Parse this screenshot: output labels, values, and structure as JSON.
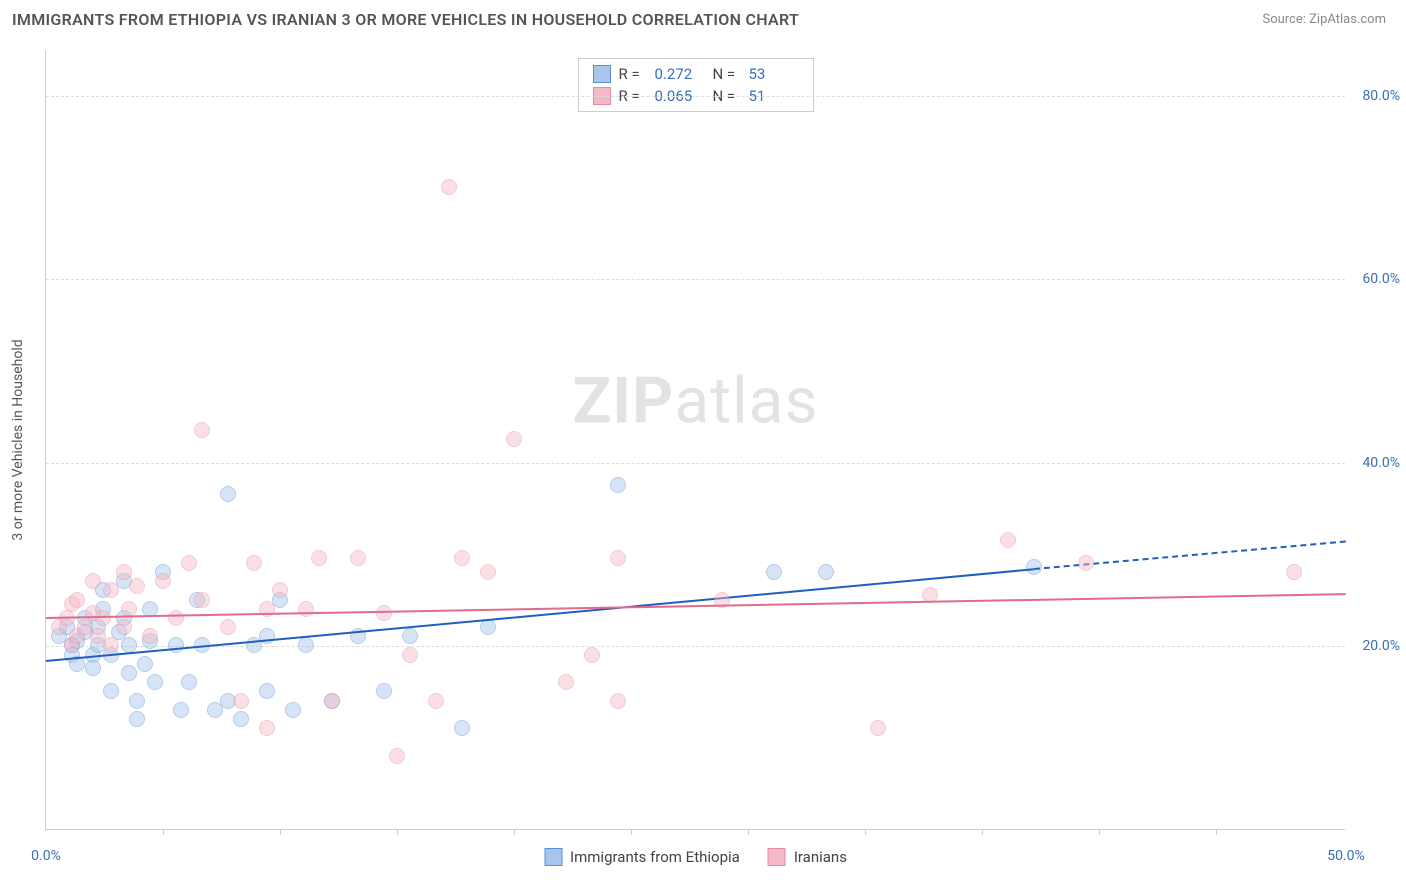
{
  "title": "IMMIGRANTS FROM ETHIOPIA VS IRANIAN 3 OR MORE VEHICLES IN HOUSEHOLD CORRELATION CHART",
  "source": "Source: ZipAtlas.com",
  "watermark_bold": "ZIP",
  "watermark_light": "atlas",
  "chart": {
    "type": "scatter",
    "xlim": [
      0,
      50
    ],
    "ylim": [
      0,
      85
    ],
    "x_ticks": [
      0,
      50
    ],
    "x_tick_labels": [
      "0.0%",
      "50.0%"
    ],
    "x_minor_ticks": [
      4.5,
      9,
      13.5,
      18,
      22.5,
      27,
      31.5,
      36,
      40.5,
      45
    ],
    "y_gridlines": [
      20,
      40,
      60,
      80
    ],
    "y_tick_labels": [
      "20.0%",
      "40.0%",
      "60.0%",
      "80.0%"
    ],
    "y_axis_title": "3 or more Vehicles in Household",
    "marker_radius": 8,
    "marker_opacity": 0.45,
    "background_color": "#ffffff",
    "grid_color": "#dddddd",
    "axis_color": "#cccccc",
    "tick_label_color": "#3b6fb6",
    "series": [
      {
        "name": "Immigrants from Ethiopia",
        "color_fill": "#a6c6ec",
        "color_stroke": "#5a8fd6",
        "r_value": "0.272",
        "n_value": "53",
        "trend": {
          "x1": 0,
          "y1": 18.5,
          "x2": 38,
          "y2": 28.5,
          "extend_x2": 50,
          "extend_y2": 31.5,
          "line_color": "#1f5fbf"
        },
        "points": [
          [
            0.5,
            21
          ],
          [
            0.8,
            22
          ],
          [
            1,
            20
          ],
          [
            1,
            19
          ],
          [
            1.2,
            18
          ],
          [
            1.2,
            20.5
          ],
          [
            1.5,
            21.5
          ],
          [
            1.5,
            23
          ],
          [
            1.8,
            19
          ],
          [
            1.8,
            17.5
          ],
          [
            2,
            20
          ],
          [
            2,
            22
          ],
          [
            2.2,
            24
          ],
          [
            2.2,
            26
          ],
          [
            2.5,
            19
          ],
          [
            2.5,
            15
          ],
          [
            2.8,
            21.5
          ],
          [
            3,
            23
          ],
          [
            3,
            27
          ],
          [
            3.2,
            17
          ],
          [
            3.2,
            20
          ],
          [
            3.5,
            12
          ],
          [
            3.5,
            14
          ],
          [
            3.8,
            18
          ],
          [
            4,
            24
          ],
          [
            4,
            20.5
          ],
          [
            4.2,
            16
          ],
          [
            4.5,
            28
          ],
          [
            5,
            20
          ],
          [
            5.2,
            13
          ],
          [
            5.5,
            16
          ],
          [
            5.8,
            25
          ],
          [
            6,
            20
          ],
          [
            6.5,
            13
          ],
          [
            7,
            36.5
          ],
          [
            7,
            14
          ],
          [
            7.5,
            12
          ],
          [
            8,
            20
          ],
          [
            8.5,
            15
          ],
          [
            8.5,
            21
          ],
          [
            9,
            25
          ],
          [
            9.5,
            13
          ],
          [
            10,
            20
          ],
          [
            11,
            14
          ],
          [
            12,
            21
          ],
          [
            13,
            15
          ],
          [
            14,
            21
          ],
          [
            16,
            11
          ],
          [
            17,
            22
          ],
          [
            22,
            37.5
          ],
          [
            28,
            28
          ],
          [
            30,
            28
          ],
          [
            38,
            28.5
          ]
        ]
      },
      {
        "name": "Iranians",
        "color_fill": "#f4b9c6",
        "color_stroke": "#e98ba0",
        "r_value": "0.065",
        "n_value": "51",
        "trend": {
          "x1": 0,
          "y1": 23.2,
          "x2": 50,
          "y2": 25.8,
          "line_color": "#e06b8b"
        },
        "points": [
          [
            0.5,
            22
          ],
          [
            0.8,
            23
          ],
          [
            1,
            20
          ],
          [
            1,
            24.5
          ],
          [
            1.2,
            21
          ],
          [
            1.2,
            25
          ],
          [
            1.5,
            22
          ],
          [
            1.8,
            23.5
          ],
          [
            1.8,
            27
          ],
          [
            2,
            21
          ],
          [
            2.2,
            23
          ],
          [
            2.5,
            26
          ],
          [
            2.5,
            20
          ],
          [
            3,
            28
          ],
          [
            3,
            22
          ],
          [
            3.2,
            24
          ],
          [
            3.5,
            26.5
          ],
          [
            4,
            21
          ],
          [
            4.5,
            27
          ],
          [
            5,
            23
          ],
          [
            5.5,
            29
          ],
          [
            6,
            43.5
          ],
          [
            6,
            25
          ],
          [
            7,
            22
          ],
          [
            7.5,
            14
          ],
          [
            8,
            29
          ],
          [
            8.5,
            24
          ],
          [
            8.5,
            11
          ],
          [
            9,
            26
          ],
          [
            10,
            24
          ],
          [
            10.5,
            29.5
          ],
          [
            11,
            14
          ],
          [
            12,
            29.5
          ],
          [
            13,
            23.5
          ],
          [
            13.5,
            8
          ],
          [
            14,
            19
          ],
          [
            15,
            14
          ],
          [
            15.5,
            70
          ],
          [
            16,
            29.5
          ],
          [
            17,
            28
          ],
          [
            18,
            42.5
          ],
          [
            20,
            16
          ],
          [
            21,
            19
          ],
          [
            22,
            29.5
          ],
          [
            22,
            14
          ],
          [
            26,
            25
          ],
          [
            32,
            11
          ],
          [
            34,
            25.5
          ],
          [
            37,
            31.5
          ],
          [
            48,
            28
          ],
          [
            40,
            29
          ]
        ]
      }
    ]
  },
  "legend_bottom": [
    {
      "label": "Immigrants from Ethiopia",
      "fill": "#a6c6ec",
      "stroke": "#5a8fd6"
    },
    {
      "label": "Iranians",
      "fill": "#f4b9c6",
      "stroke": "#e98ba0"
    }
  ]
}
